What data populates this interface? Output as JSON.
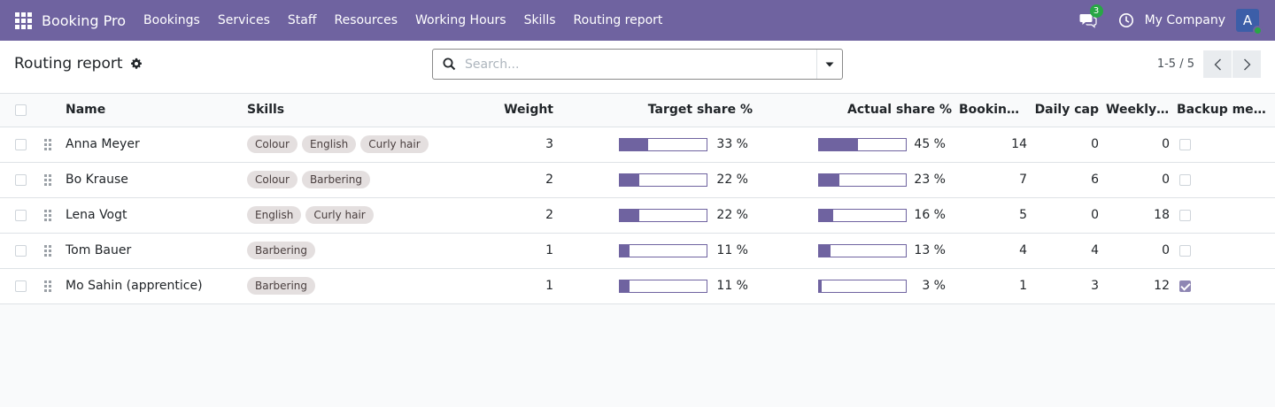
{
  "navbar": {
    "brand": "Booking Pro",
    "menu": [
      "Bookings",
      "Services",
      "Staff",
      "Resources",
      "Working Hours",
      "Skills",
      "Routing report"
    ],
    "chat_count": "3",
    "company": "My Company",
    "avatar_initial": "A"
  },
  "control": {
    "title": "Routing report",
    "search_placeholder": "Search...",
    "pager": "1-5 / 5"
  },
  "table": {
    "columns": [
      "Name",
      "Skills",
      "Weight",
      "Target share %",
      "Actual share %",
      "Booking...",
      "Daily cap",
      "Weekly ...",
      "Backup mem..."
    ],
    "rows": [
      {
        "name": "Anna Meyer",
        "skills": [
          "Colour",
          "English",
          "Curly hair"
        ],
        "weight": "3",
        "target": 33,
        "target_text": "33 %",
        "actual": 45,
        "actual_text": "45 %",
        "bookings": "14",
        "daily_cap": "0",
        "weekly": "0",
        "backup": false
      },
      {
        "name": "Bo Krause",
        "skills": [
          "Colour",
          "Barbering"
        ],
        "weight": "2",
        "target": 22,
        "target_text": "22 %",
        "actual": 23,
        "actual_text": "23 %",
        "bookings": "7",
        "daily_cap": "6",
        "weekly": "0",
        "backup": false
      },
      {
        "name": "Lena Vogt",
        "skills": [
          "English",
          "Curly hair"
        ],
        "weight": "2",
        "target": 22,
        "target_text": "22 %",
        "actual": 16,
        "actual_text": "16 %",
        "bookings": "5",
        "daily_cap": "0",
        "weekly": "18",
        "backup": false
      },
      {
        "name": "Tom Bauer",
        "skills": [
          "Barbering"
        ],
        "weight": "1",
        "target": 11,
        "target_text": "11 %",
        "actual": 13,
        "actual_text": "13 %",
        "bookings": "4",
        "daily_cap": "4",
        "weekly": "0",
        "backup": false
      },
      {
        "name": "Mo Sahin (apprentice)",
        "skills": [
          "Barbering"
        ],
        "weight": "1",
        "target": 11,
        "target_text": "11 %",
        "actual": 3,
        "actual_text": "3 %",
        "bookings": "1",
        "daily_cap": "3",
        "weekly": "12",
        "backup": true
      }
    ]
  },
  "colors": {
    "navbar": "#6f63a0",
    "progress": "#6f63a0",
    "chat_badge": "#28a745",
    "avatar": "#3c5ea8"
  },
  "icons": [
    "apps-icon",
    "chat-icon",
    "clock-icon",
    "gear-icon",
    "search-icon",
    "caret-down-icon",
    "chevron-left-icon",
    "chevron-right-icon",
    "drag-handle-icon"
  ]
}
